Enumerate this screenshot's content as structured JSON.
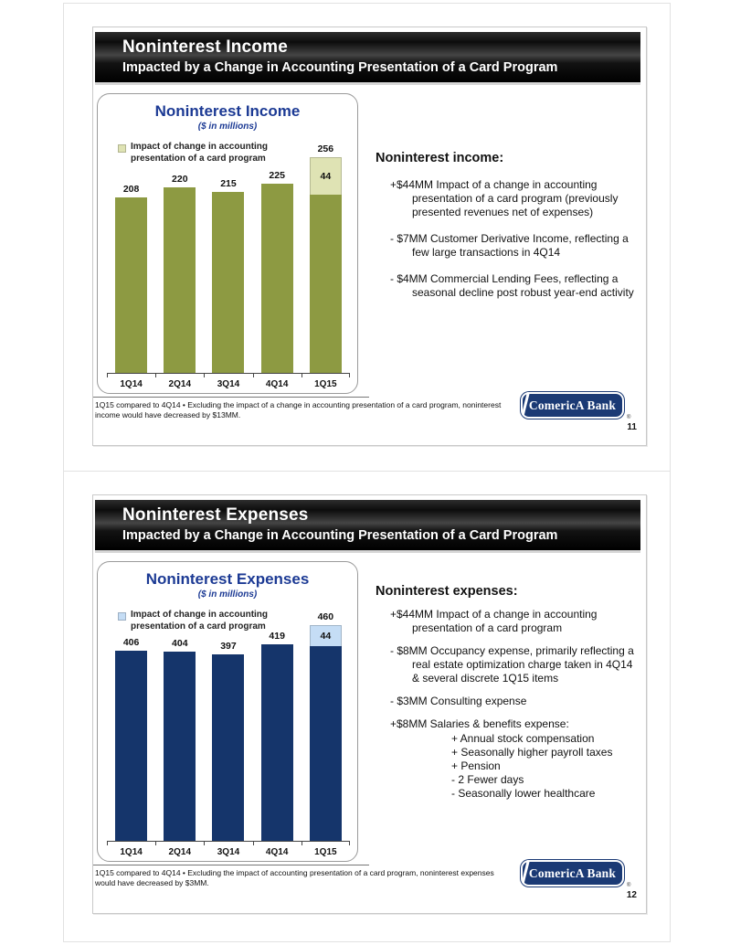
{
  "slides": [
    {
      "page_number": "11",
      "header": {
        "title": "Noninterest Income",
        "subtitle": "Impacted by a Change in Accounting Presentation of a Card Program"
      },
      "chart": {
        "title": "Noninterest Income",
        "subtitle": "($ in millions)",
        "legend": "Impact of change in accounting presentation of a card program"
      },
      "notes": {
        "heading": "Noninterest income:",
        "bullets": [
          "+$44MM Impact of a change in accounting presentation of a card program (previously presented revenues net of expenses)",
          "- $7MM Customer Derivative Income, reflecting a few large transactions in 4Q14",
          "- $4MM Commercial Lending Fees, reflecting a seasonal decline post robust year-end activity"
        ]
      },
      "footnote": "1Q15 compared to 4Q14 • Excluding the impact of a change in accounting presentation of a card program, noninterest income would have decreased by $13MM.",
      "logo": {
        "text": "ComericA Bank",
        "mark": "®"
      }
    },
    {
      "page_number": "12",
      "header": {
        "title": "Noninterest Expenses",
        "subtitle": "Impacted by a Change in Accounting Presentation of a Card Program"
      },
      "chart": {
        "title": "Noninterest Expenses",
        "subtitle": "($ in millions)",
        "legend": "Impact of change in accounting presentation of a card program"
      },
      "notes": {
        "heading": "Noninterest expenses:",
        "bullets": [
          {
            "text": "+$44MM Impact of a change in accounting presentation of a card program"
          },
          {
            "text": "- $8MM Occupancy expense, primarily reflecting a real estate optimization charge taken in 4Q14 & several discrete 1Q15 items"
          },
          {
            "text": "- $3MM Consulting expense"
          },
          {
            "text": "+$8MM Salaries & benefits expense:",
            "subitems": [
              "+ Annual stock compensation",
              "+ Seasonally higher payroll taxes",
              "+ Pension",
              "- 2 Fewer days",
              "- Seasonally lower healthcare"
            ]
          }
        ]
      },
      "footnote": "1Q15 compared to 4Q14 • Excluding the impact of accounting presentation of a card program, noninterest expenses would have decreased by $3MM.",
      "logo": {
        "text": "ComericA Bank",
        "mark": "®"
      }
    }
  ],
  "chart_data": [
    {
      "type": "bar",
      "title": "Noninterest Income",
      "subtitle": "($ in millions)",
      "xlabel": "",
      "ylabel": "$ in millions",
      "categories": [
        "1Q14",
        "2Q14",
        "3Q14",
        "4Q14",
        "1Q15"
      ],
      "series": [
        {
          "name": "Noninterest income",
          "values": [
            208,
            220,
            215,
            225,
            212
          ],
          "color": "#8d9a42"
        },
        {
          "name": "Impact of change in accounting presentation of a card program",
          "values": [
            0,
            0,
            0,
            0,
            44
          ],
          "color": "#dfe3b4"
        }
      ],
      "total_labels": [
        "208",
        "220",
        "215",
        "225",
        "256"
      ],
      "segment_label": "44",
      "ylim": [
        0,
        256
      ],
      "grid": false,
      "legend_position": "top-left"
    },
    {
      "type": "bar",
      "title": "Noninterest Expenses",
      "subtitle": "($ in millions)",
      "xlabel": "",
      "ylabel": "$ in millions",
      "categories": [
        "1Q14",
        "2Q14",
        "3Q14",
        "4Q14",
        "1Q15"
      ],
      "series": [
        {
          "name": "Noninterest expenses",
          "values": [
            406,
            404,
            397,
            419,
            416
          ],
          "color": "#15356b"
        },
        {
          "name": "Impact of change in accounting presentation of a card program",
          "values": [
            0,
            0,
            0,
            0,
            44
          ],
          "color": "#c5ddf5"
        }
      ],
      "total_labels": [
        "406",
        "404",
        "397",
        "419",
        "460"
      ],
      "segment_label": "44",
      "ylim": [
        0,
        460
      ],
      "grid": false,
      "legend_position": "top-left"
    }
  ]
}
